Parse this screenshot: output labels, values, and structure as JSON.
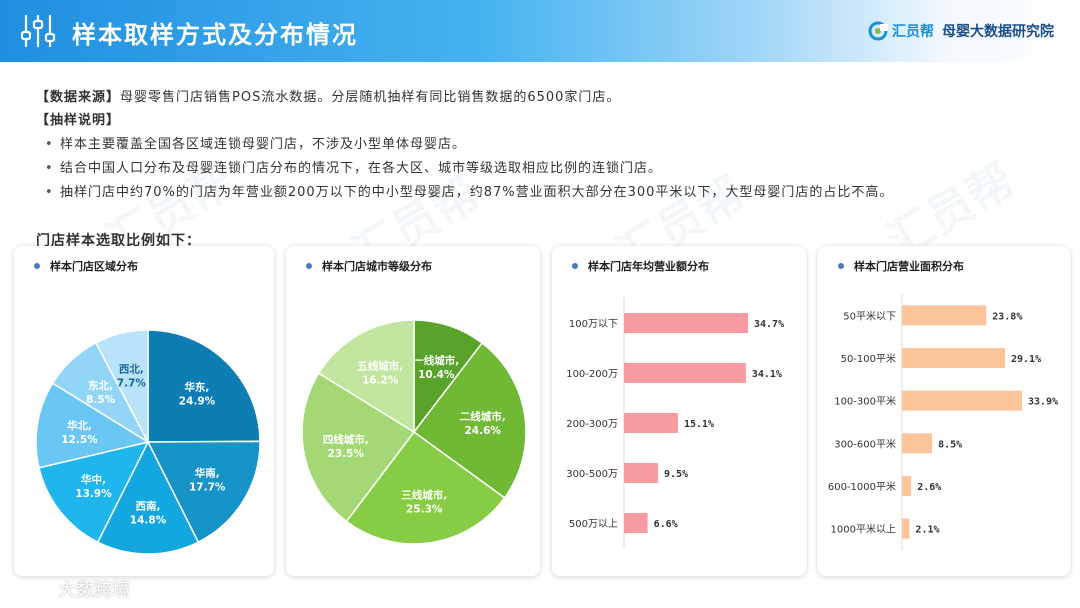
{
  "header": {
    "title": "样本取样方式及分布情况",
    "brand_name": "汇员帮",
    "brand_org": "母婴大数据研究院"
  },
  "source": {
    "label": "【数据来源】",
    "text": "母婴零售门店销售POS流水数据。分层随机抽样有同比销售数据的6500家门店。"
  },
  "method": {
    "label": "【抽样说明】",
    "bullets": [
      "样本主要覆盖全国各区域连锁母婴门店，不涉及小型单体母婴店。",
      "结合中国人口分布及母婴连锁门店分布的情况下，在各大区、城市等级选取相应比例的连锁门店。",
      "抽样门店中约70%的门店为年营业额200万以下的中小型母婴店，约87%营业面积大部分在300平米以下，大型母婴门店的占比不高。"
    ]
  },
  "subtitle": "门店样本选取比例如下：",
  "watermark": "汇员帮",
  "footer_watermark": "大数跨境",
  "colors": {
    "region": [
      "#0e7db4",
      "#1694c8",
      "#12a7df",
      "#1fb6ee",
      "#6ac7f4",
      "#92d5f7",
      "#b9e3fa"
    ],
    "city": [
      "#5aa32b",
      "#6fb934",
      "#86cc45",
      "#a4d874",
      "#c2e6a0"
    ],
    "revenue_bar": "#f79aa2",
    "area_bar": "#fbc49b"
  },
  "chart_data": [
    {
      "type": "pie",
      "title": "样本门店区域分布",
      "categories": [
        "华东",
        "华南",
        "西南",
        "华中",
        "华北",
        "东北",
        "西北"
      ],
      "values": [
        24.9,
        17.7,
        14.8,
        13.9,
        12.5,
        8.5,
        7.7
      ],
      "labels": [
        "24.9%",
        "17.7%",
        "14.8%",
        "13.9%",
        "12.5%",
        "8.5%",
        "7.7%"
      ]
    },
    {
      "type": "pie",
      "title": "样本门店城市等级分布",
      "categories": [
        "一线城市",
        "二线城市",
        "三线城市",
        "四线城市",
        "五线城市"
      ],
      "values": [
        10.4,
        24.6,
        25.3,
        23.5,
        16.2
      ],
      "labels": [
        "10.4%",
        "24.6%",
        "25.3%",
        "23.5%",
        "16.2%"
      ]
    },
    {
      "type": "bar",
      "orientation": "horizontal",
      "title": "样本门店年均营业额分布",
      "categories": [
        "100万以下",
        "100-200万",
        "200-300万",
        "300-500万",
        "500万以上"
      ],
      "values": [
        34.7,
        34.1,
        15.1,
        9.5,
        6.6
      ],
      "labels": [
        "34.7%",
        "34.1%",
        "15.1%",
        "9.5%",
        "6.6%"
      ]
    },
    {
      "type": "bar",
      "orientation": "horizontal",
      "title": "样本门店营业面积分布",
      "categories": [
        "50平米以下",
        "50-100平米",
        "100-300平米",
        "300-600平米",
        "600-1000平米",
        "1000平米以上"
      ],
      "values": [
        23.8,
        29.1,
        33.9,
        8.5,
        2.6,
        2.1
      ],
      "labels": [
        "23.8%",
        "29.1%",
        "33.9%",
        "8.5%",
        "2.6%",
        "2.1%"
      ]
    }
  ]
}
